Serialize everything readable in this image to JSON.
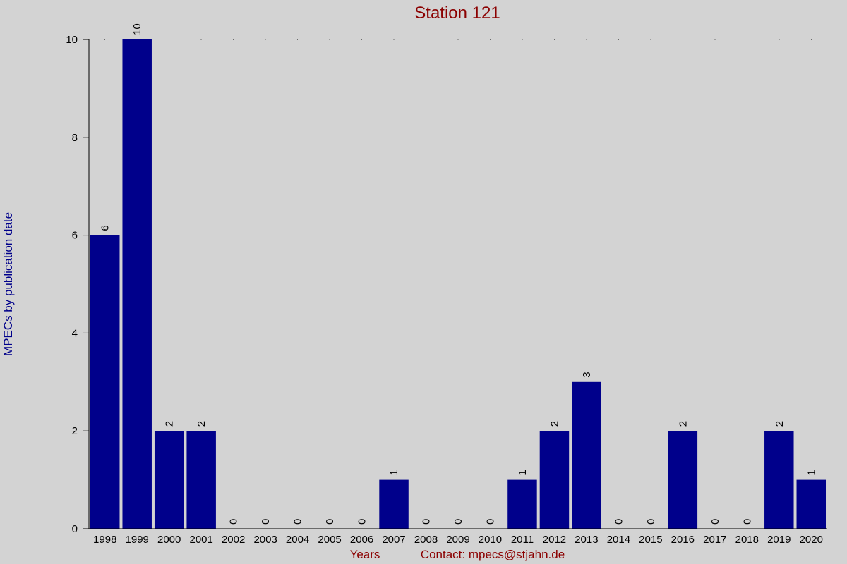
{
  "chart_data": {
    "type": "bar",
    "title": "Station 121",
    "x_label": "Years",
    "y_label": "MPECs by publication date",
    "contact": "Contact: mpecs@stjahn.de",
    "categories": [
      "1998",
      "1999",
      "2000",
      "2001",
      "2002",
      "2003",
      "2004",
      "2005",
      "2006",
      "2007",
      "2008",
      "2009",
      "2010",
      "2011",
      "2012",
      "2013",
      "2014",
      "2015",
      "2016",
      "2017",
      "2018",
      "2019",
      "2020"
    ],
    "values": [
      6,
      10,
      2,
      2,
      0,
      0,
      0,
      0,
      0,
      1,
      0,
      0,
      0,
      1,
      2,
      3,
      0,
      0,
      2,
      0,
      0,
      2,
      1
    ],
    "color": "#00008b",
    "ylim": [
      0,
      10
    ],
    "yticks": [
      0,
      2,
      4,
      6,
      8,
      10
    ]
  }
}
